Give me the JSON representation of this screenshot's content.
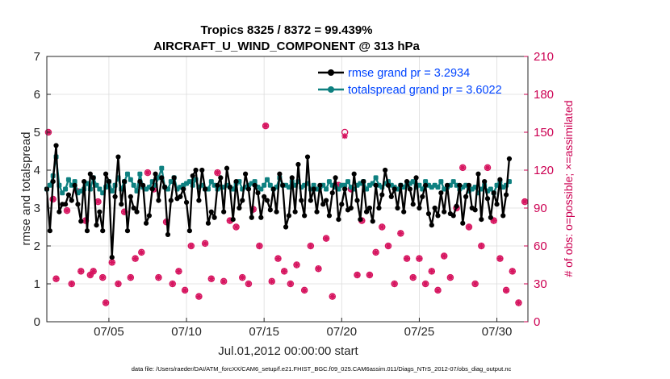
{
  "chart_data": {
    "type": "line",
    "title": "Tropics 8325 / 8372 = 99.439%",
    "subtitle": "AIRCRAFT_U_WIND_COMPONENT @ 313 hPa",
    "xlabel": "Jul.01,2012 00:00:00 start",
    "ylabel": "rmse and totalspread",
    "y2label": "# of obs: o=possible; ×=assimilated",
    "footnote": "data file: /Users/raeder/DAI/ATM_forcXX/CAM6_setup/f.e21.FHIST_BGC.f09_025.CAM6assim.011/Diags_NTrS_2012-07/obs_diag_output.nc",
    "ylim": [
      0,
      7
    ],
    "y2lim": [
      0,
      210
    ],
    "xlim": [
      1,
      32
    ],
    "x_ticks": [
      5,
      10,
      15,
      20,
      25,
      30
    ],
    "x_tick_labels": [
      "07/05",
      "07/10",
      "07/15",
      "07/20",
      "07/25",
      "07/30"
    ],
    "y_ticks": [
      0,
      1,
      2,
      3,
      4,
      5,
      6,
      7
    ],
    "y2_ticks": [
      0,
      30,
      60,
      90,
      120,
      150,
      180,
      210
    ],
    "legend": {
      "position": "top-right",
      "entries": [
        "rmse grand pr = 3.2934",
        "totalspread grand pr = 3.6022"
      ]
    },
    "colors": {
      "rmse": "#000000",
      "spread": "#0e8080",
      "obs": "#d6145f"
    },
    "series": [
      {
        "name": "rmse",
        "values": [
          3.5,
          2.4,
          3.7,
          4.65,
          2.9,
          3.1,
          3.1,
          3.35,
          3.2,
          3.6,
          3.1,
          2.65,
          3.7,
          2.4,
          3.9,
          3.8,
          2.55,
          2.9,
          2.4,
          3.9,
          3.7,
          1.7,
          3.3,
          4.35,
          3.1,
          3.7,
          2.4,
          3.3,
          3.0,
          2.9,
          3.7,
          3.6,
          2.6,
          2.8,
          3.5,
          3.9,
          3.2,
          3.8,
          3.55,
          2.3,
          3.2,
          3.8,
          3.25,
          3.3,
          3.5,
          3.15,
          2.4,
          3.85,
          4.0,
          3.2,
          4.0,
          3.5,
          2.6,
          2.9,
          2.75,
          3.6,
          3.8,
          2.9,
          4.05,
          3.55,
          2.7,
          3.7,
          3.0,
          3.2,
          3.9,
          3.5,
          2.75,
          3.6,
          3.4,
          2.75,
          3.3,
          3.2,
          2.95,
          3.5,
          2.9,
          3.9,
          3.6,
          2.5,
          2.8,
          3.8,
          2.9,
          4.15,
          3.2,
          2.8,
          4.35,
          3.2,
          3.5,
          2.9,
          3.6,
          3.1,
          3.2,
          2.8,
          3.4,
          3.8,
          2.7,
          3.1,
          3.5,
          2.95,
          3.0,
          3.9,
          3.2,
          2.7,
          3.7,
          2.9,
          3.0,
          2.65,
          3.6,
          3.0,
          3.35,
          4.0,
          3.6,
          3.3,
          3.5,
          3.0,
          3.6,
          2.9,
          3.7,
          3.5,
          3.1,
          3.8,
          3.0,
          3.3,
          3.6,
          2.85,
          2.55,
          3.0,
          2.8,
          3.4,
          2.9,
          3.6,
          2.85,
          2.8,
          3.05,
          3.6,
          2.6,
          3.3,
          3.6,
          3.0,
          2.95,
          3.9,
          2.7,
          3.7,
          3.25,
          2.75,
          3.4,
          3.1,
          3.75,
          2.8,
          3.35,
          4.3
        ],
        "x_start": 1.0,
        "x_step": 0.2
      },
      {
        "name": "totalspread",
        "values": [
          3.5,
          3.6,
          3.85,
          4.35,
          3.6,
          3.4,
          3.5,
          3.75,
          3.6,
          3.7,
          3.4,
          3.45,
          3.5,
          3.65,
          3.5,
          3.8,
          3.6,
          3.5,
          3.4,
          3.55,
          3.7,
          3.45,
          3.6,
          3.8,
          3.5,
          3.7,
          3.9,
          3.75,
          3.6,
          3.45,
          3.9,
          3.55,
          3.5,
          3.55,
          3.7,
          3.6,
          3.8,
          4.05,
          3.55,
          3.5,
          3.7,
          3.8,
          3.5,
          3.55,
          3.6,
          3.65,
          3.7,
          3.6,
          3.75,
          3.55,
          3.6,
          3.5,
          3.5,
          3.7,
          3.6,
          3.5,
          3.55,
          3.55,
          3.6,
          3.55,
          3.5,
          3.65,
          3.7,
          3.5,
          3.55,
          3.6,
          3.65,
          3.7,
          3.55,
          3.5,
          3.6,
          3.75,
          3.6,
          3.5,
          3.55,
          3.8,
          3.6,
          3.6,
          3.55,
          3.7,
          3.6,
          3.7,
          3.55,
          3.6,
          3.65,
          3.5,
          3.6,
          3.5,
          3.55,
          3.6,
          3.5,
          3.7,
          3.6,
          3.55,
          3.5,
          3.6,
          3.6,
          3.7,
          3.55,
          3.5,
          3.6,
          3.65,
          3.7,
          3.5,
          3.6,
          3.65,
          3.8,
          3.6,
          3.55,
          3.65,
          3.7,
          3.6,
          3.55,
          3.5,
          3.6,
          3.55,
          3.6,
          3.65,
          3.7,
          3.55,
          3.6,
          3.5,
          3.7,
          3.6,
          3.55,
          3.6,
          3.55,
          3.7,
          3.5,
          3.55,
          3.6,
          3.7,
          3.6,
          3.5,
          3.55,
          3.6,
          3.45,
          3.5,
          3.55,
          3.4,
          3.5,
          3.6,
          3.45,
          3.5,
          3.4,
          3.6,
          3.7,
          3.55,
          3.6,
          3.7
        ],
        "x_start": 1.0,
        "x_step": 0.2
      },
      {
        "name": "obs_possible",
        "points": [
          [
            1.1,
            150
          ],
          [
            1.4,
            97
          ],
          [
            1.6,
            34
          ],
          [
            2.3,
            88
          ],
          [
            2.6,
            30
          ],
          [
            3.0,
            103
          ],
          [
            3.2,
            40
          ],
          [
            3.5,
            80
          ],
          [
            3.8,
            37
          ],
          [
            4.0,
            40
          ],
          [
            4.3,
            95
          ],
          [
            4.6,
            35
          ],
          [
            4.8,
            15
          ],
          [
            5.2,
            47
          ],
          [
            5.6,
            30
          ],
          [
            6.0,
            87
          ],
          [
            6.4,
            35
          ],
          [
            6.7,
            50
          ],
          [
            7.1,
            55
          ],
          [
            7.5,
            118
          ],
          [
            7.9,
            105
          ],
          [
            8.2,
            35
          ],
          [
            8.7,
            79
          ],
          [
            9.1,
            30
          ],
          [
            9.5,
            40
          ],
          [
            9.9,
            25
          ],
          [
            10.3,
            60
          ],
          [
            10.8,
            20
          ],
          [
            11.2,
            62
          ],
          [
            11.6,
            34
          ],
          [
            12.0,
            118
          ],
          [
            12.4,
            32
          ],
          [
            12.8,
            80
          ],
          [
            13.2,
            75
          ],
          [
            13.6,
            35
          ],
          [
            14.0,
            30
          ],
          [
            14.3,
            89
          ],
          [
            14.7,
            60
          ],
          [
            15.1,
            155
          ],
          [
            15.5,
            32
          ],
          [
            15.9,
            50
          ],
          [
            16.3,
            40
          ],
          [
            16.7,
            30
          ],
          [
            17.1,
            45
          ],
          [
            17.6,
            25
          ],
          [
            18.0,
            60
          ],
          [
            18.5,
            42
          ],
          [
            19.0,
            66
          ],
          [
            19.4,
            20
          ],
          [
            19.8,
            108
          ],
          [
            20.2,
            150
          ],
          [
            20.6,
            105
          ],
          [
            21.0,
            37
          ],
          [
            21.3,
            80
          ],
          [
            21.8,
            37
          ],
          [
            22.2,
            55
          ],
          [
            22.6,
            75
          ],
          [
            23.0,
            60
          ],
          [
            23.4,
            30
          ],
          [
            23.8,
            70
          ],
          [
            24.2,
            50
          ],
          [
            24.6,
            35
          ],
          [
            25.0,
            50
          ],
          [
            25.4,
            30
          ],
          [
            25.8,
            40
          ],
          [
            26.2,
            25
          ],
          [
            26.6,
            52
          ],
          [
            27.0,
            35
          ],
          [
            27.4,
            90
          ],
          [
            27.8,
            122
          ],
          [
            28.2,
            75
          ],
          [
            28.6,
            30
          ],
          [
            29.0,
            60
          ],
          [
            29.4,
            122
          ],
          [
            29.8,
            80
          ],
          [
            30.2,
            50
          ],
          [
            30.6,
            25
          ],
          [
            31.0,
            40
          ],
          [
            31.4,
            15
          ],
          [
            31.8,
            95
          ]
        ]
      },
      {
        "name": "obs_assimilated",
        "points": [
          [
            1.1,
            150
          ],
          [
            1.4,
            97
          ],
          [
            1.6,
            34
          ],
          [
            2.3,
            88
          ],
          [
            2.6,
            30
          ],
          [
            3.0,
            103
          ],
          [
            3.2,
            40
          ],
          [
            3.5,
            80
          ],
          [
            3.8,
            37
          ],
          [
            4.0,
            40
          ],
          [
            4.3,
            95
          ],
          [
            4.6,
            35
          ],
          [
            4.8,
            15
          ],
          [
            5.2,
            47
          ],
          [
            5.6,
            30
          ],
          [
            6.0,
            87
          ],
          [
            6.4,
            35
          ],
          [
            6.7,
            50
          ],
          [
            7.1,
            55
          ],
          [
            7.5,
            118
          ],
          [
            7.9,
            105
          ],
          [
            8.2,
            35
          ],
          [
            8.7,
            79
          ],
          [
            9.1,
            30
          ],
          [
            9.5,
            40
          ],
          [
            9.9,
            25
          ],
          [
            10.3,
            60
          ],
          [
            10.8,
            20
          ],
          [
            11.2,
            62
          ],
          [
            11.6,
            34
          ],
          [
            12.0,
            118
          ],
          [
            12.4,
            32
          ],
          [
            12.8,
            80
          ],
          [
            13.2,
            75
          ],
          [
            13.6,
            35
          ],
          [
            14.0,
            30
          ],
          [
            14.3,
            89
          ],
          [
            14.7,
            60
          ],
          [
            15.1,
            155
          ],
          [
            15.5,
            32
          ],
          [
            15.9,
            50
          ],
          [
            16.3,
            40
          ],
          [
            16.7,
            30
          ],
          [
            17.1,
            45
          ],
          [
            17.6,
            25
          ],
          [
            18.0,
            60
          ],
          [
            18.5,
            42
          ],
          [
            19.0,
            66
          ],
          [
            19.4,
            20
          ],
          [
            19.8,
            108
          ],
          [
            20.2,
            147
          ],
          [
            20.6,
            105
          ],
          [
            21.0,
            37
          ],
          [
            21.3,
            80
          ],
          [
            21.8,
            37
          ],
          [
            22.2,
            55
          ],
          [
            22.6,
            75
          ],
          [
            23.0,
            60
          ],
          [
            23.4,
            30
          ],
          [
            23.8,
            70
          ],
          [
            24.2,
            50
          ],
          [
            24.6,
            35
          ],
          [
            25.0,
            50
          ],
          [
            25.4,
            30
          ],
          [
            25.8,
            40
          ],
          [
            26.2,
            25
          ],
          [
            26.6,
            52
          ],
          [
            27.0,
            35
          ],
          [
            27.4,
            90
          ],
          [
            27.8,
            122
          ],
          [
            28.2,
            75
          ],
          [
            28.6,
            30
          ],
          [
            29.0,
            60
          ],
          [
            29.4,
            122
          ],
          [
            29.8,
            80
          ],
          [
            30.2,
            50
          ],
          [
            30.6,
            25
          ],
          [
            31.0,
            40
          ],
          [
            31.4,
            15
          ],
          [
            31.8,
            95
          ]
        ]
      }
    ]
  }
}
